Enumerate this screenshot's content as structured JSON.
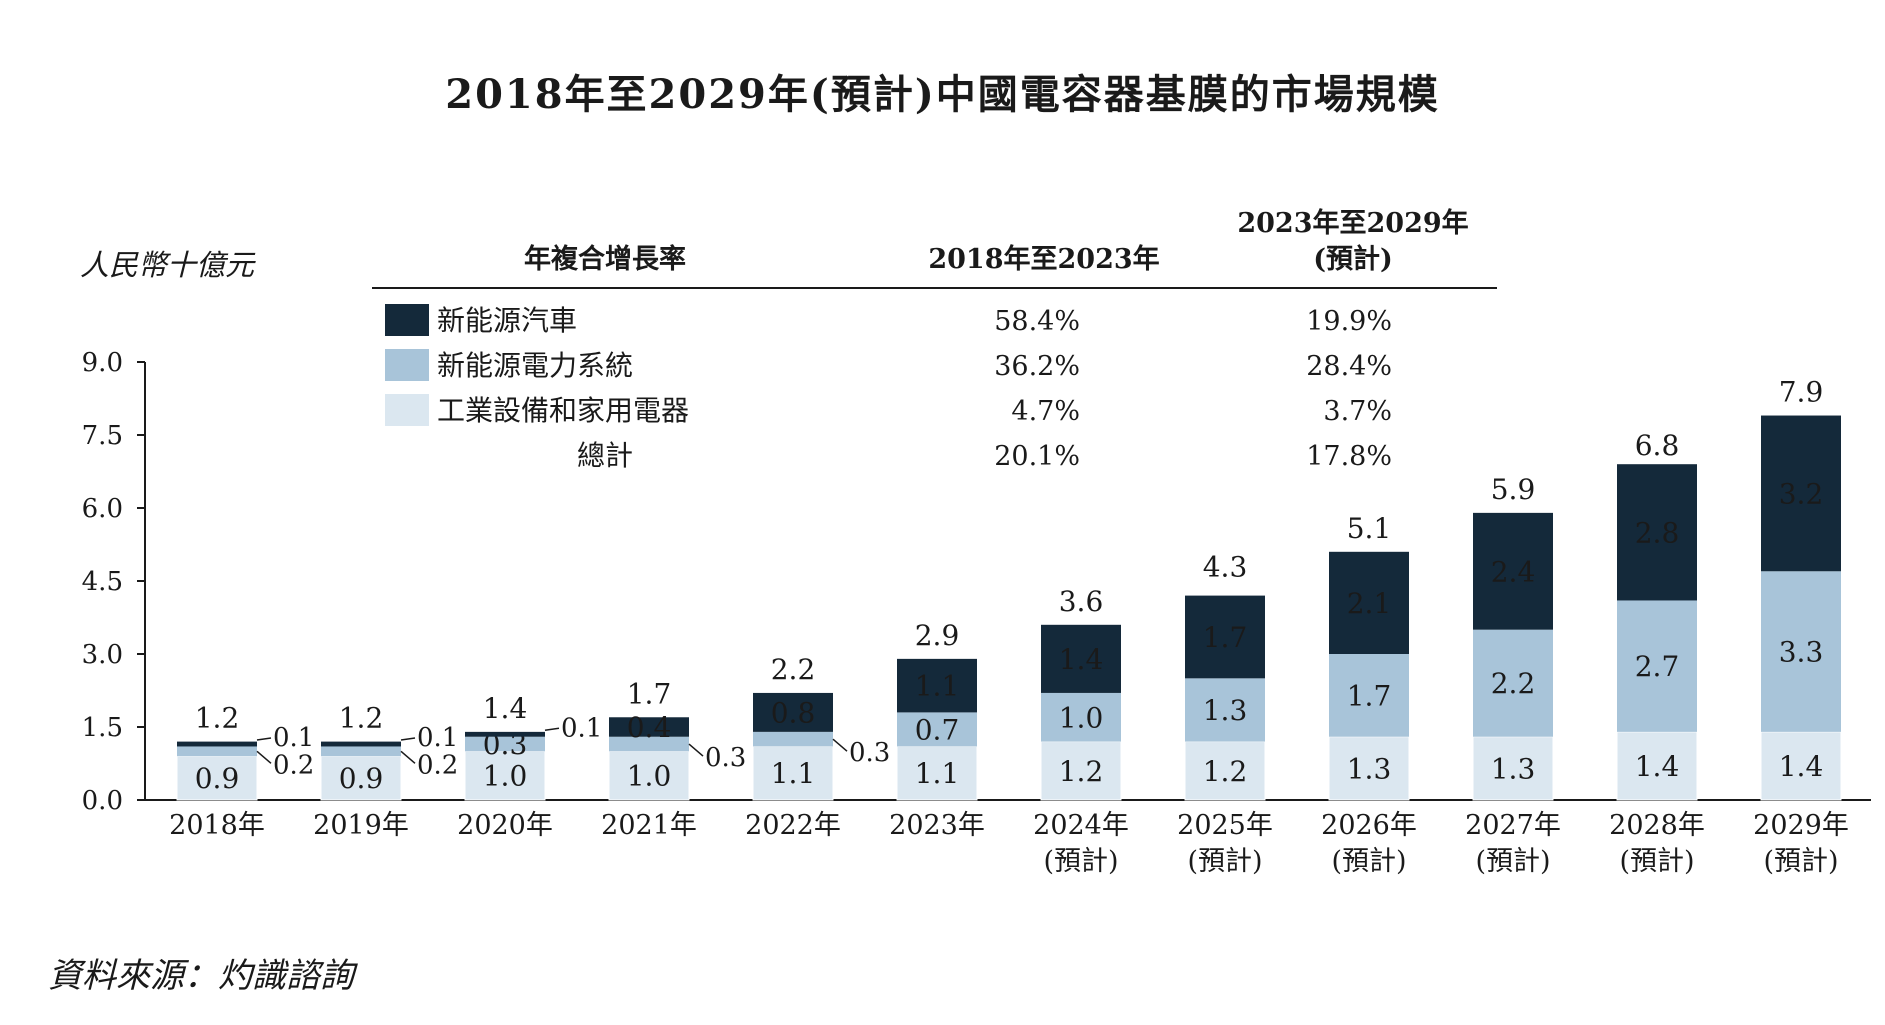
{
  "title": "2018年至2029年(預計)中國電容器基膜的市場規模",
  "source": "資料來源：灼識諮詢",
  "colors": {
    "nev": "#14293a",
    "power": "#a8c4d9",
    "industrial": "#dbe7f0",
    "text_dark": "#1a1a1a",
    "text_light": "#ffffff"
  },
  "cagr_table": {
    "header_label": "年複合增長率",
    "col1_header": "2018年至2023年",
    "col2_header_line1": "2023年至2029年",
    "col2_header_line2": "(預計)",
    "rows": [
      {
        "swatch": "nev",
        "label": "新能源汽車",
        "v1": "58.4%",
        "v2": "19.9%"
      },
      {
        "swatch": "power",
        "label": "新能源電力系統",
        "v1": "36.2%",
        "v2": "28.4%"
      },
      {
        "swatch": "industrial",
        "label": "工業設備和家用電器",
        "v1": "4.7%",
        "v2": "3.7%"
      },
      {
        "swatch": null,
        "label": "總計",
        "v1": "20.1%",
        "v2": "17.8%"
      }
    ]
  },
  "chart_data": {
    "type": "bar",
    "stacked": true,
    "ylabel": "人民幣十億元",
    "ylim": [
      0,
      9.0
    ],
    "yticks": [
      "0.0",
      "1.5",
      "3.0",
      "4.5",
      "6.0",
      "7.5",
      "9.0"
    ],
    "categories": [
      [
        "2018年"
      ],
      [
        "2019年"
      ],
      [
        "2020年"
      ],
      [
        "2021年"
      ],
      [
        "2022年"
      ],
      [
        "2023年"
      ],
      [
        "2024年",
        "(預計)"
      ],
      [
        "2025年",
        "(預計)"
      ],
      [
        "2026年",
        "(預計)"
      ],
      [
        "2027年",
        "(預計)"
      ],
      [
        "2028年",
        "(預計)"
      ],
      [
        "2029年",
        "(預計)"
      ]
    ],
    "series": [
      {
        "name": "工業設備和家用電器",
        "color_key": "industrial",
        "values": [
          0.9,
          0.9,
          1.0,
          1.0,
          1.1,
          1.1,
          1.2,
          1.2,
          1.3,
          1.3,
          1.4,
          1.4
        ],
        "labels": [
          "0.9",
          "0.9",
          "1.0",
          "1.0",
          "1.1",
          "1.1",
          "1.2",
          "1.2",
          "1.3",
          "1.3",
          "1.4",
          "1.4"
        ]
      },
      {
        "name": "新能源電力系統",
        "color_key": "power",
        "values": [
          0.2,
          0.2,
          0.3,
          0.3,
          0.3,
          0.7,
          1.0,
          1.3,
          1.7,
          2.2,
          2.7,
          3.3
        ],
        "labels": [
          "0.2",
          "0.2",
          "0.3",
          "0.3",
          "0.3",
          "0.7",
          "1.0",
          "1.3",
          "1.7",
          "2.2",
          "2.7",
          "3.3"
        ]
      },
      {
        "name": "新能源汽車",
        "color_key": "nev",
        "values": [
          0.1,
          0.1,
          0.1,
          0.4,
          0.8,
          1.1,
          1.4,
          1.7,
          2.1,
          2.4,
          2.8,
          3.2
        ],
        "labels": [
          "0.1",
          "0.1",
          "0.1",
          "0.4",
          "0.8",
          "1.1",
          "1.4",
          "1.7",
          "2.1",
          "2.4",
          "2.8",
          "3.2"
        ]
      }
    ],
    "totals": [
      "1.2",
      "1.2",
      "1.4",
      "1.7",
      "2.2",
      "2.9",
      "3.6",
      "4.3",
      "5.1",
      "5.9",
      "6.8",
      "7.9"
    ],
    "total_values": [
      1.2,
      1.2,
      1.4,
      1.7,
      2.2,
      2.9,
      3.6,
      4.3,
      5.1,
      5.9,
      6.8,
      7.9
    ],
    "outside_labels": [
      {
        "index": 0,
        "series": 2,
        "label": "0.1"
      },
      {
        "index": 0,
        "series": 1,
        "label": "0.2"
      },
      {
        "index": 1,
        "series": 2,
        "label": "0.1"
      },
      {
        "index": 1,
        "series": 1,
        "label": "0.2"
      },
      {
        "index": 2,
        "series": 2,
        "label": "0.1"
      },
      {
        "index": 3,
        "series": 1,
        "label": "0.3"
      },
      {
        "index": 4,
        "series": 1,
        "label": "0.3"
      }
    ]
  }
}
